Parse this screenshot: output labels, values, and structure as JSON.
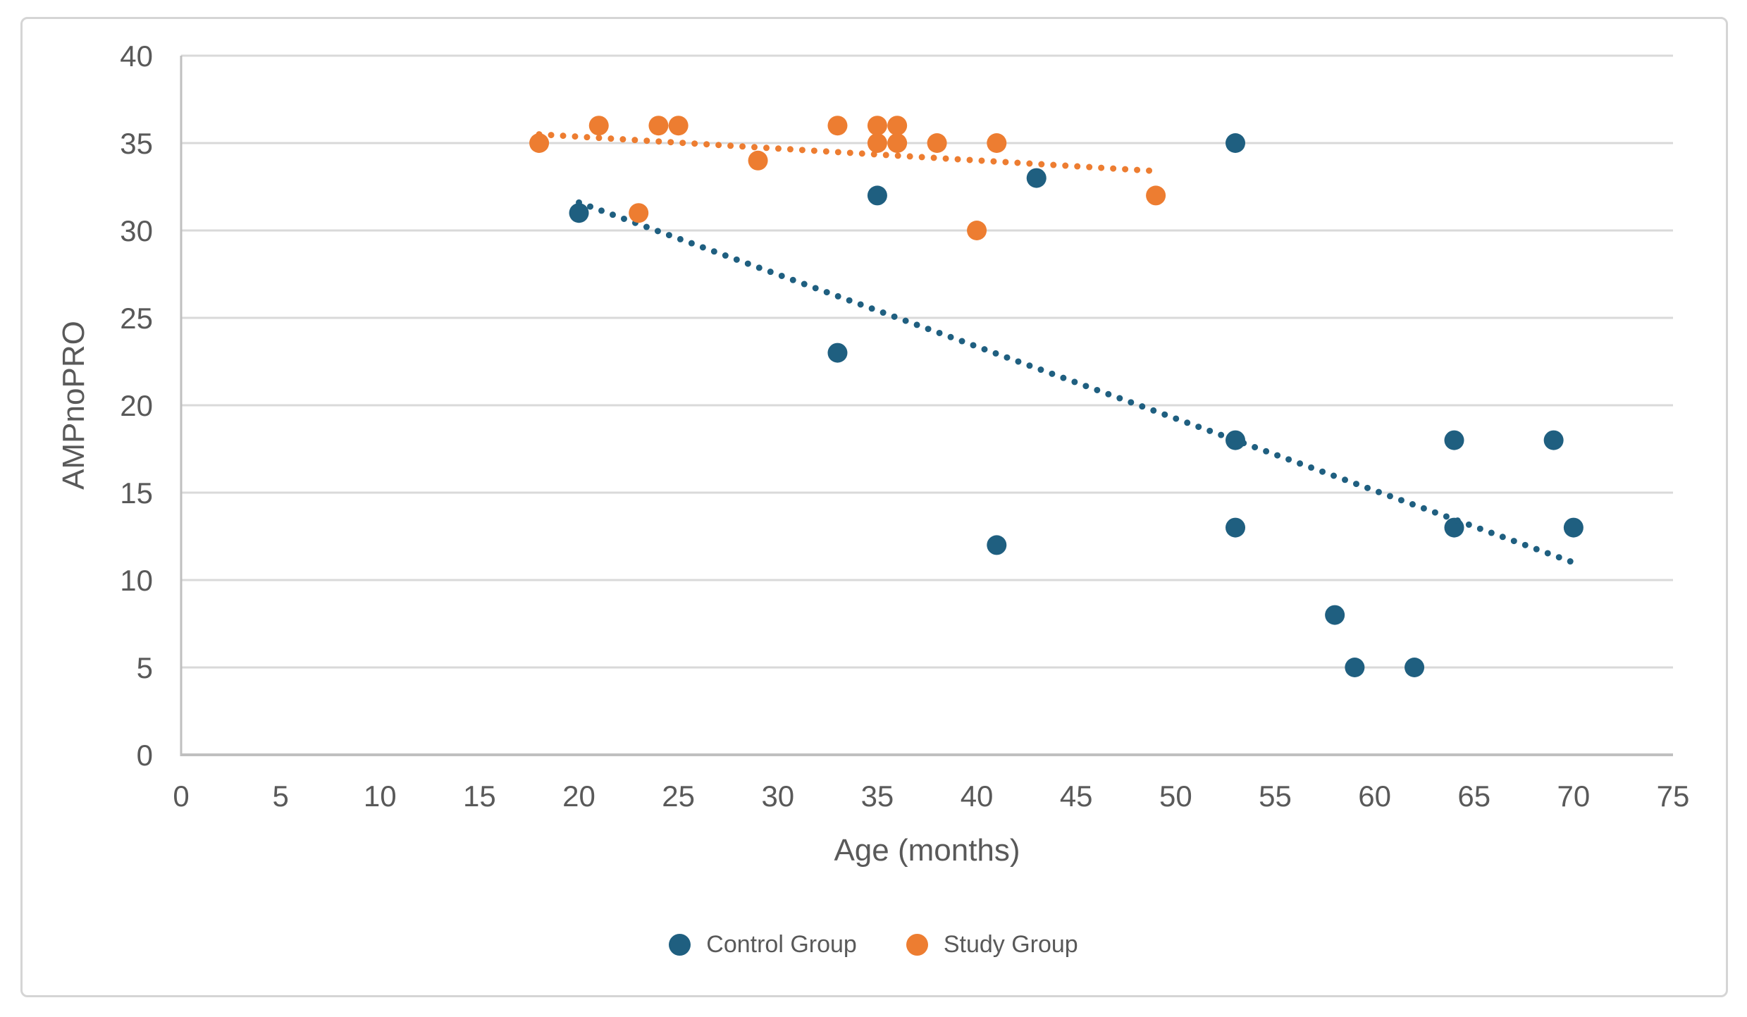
{
  "chart_data": {
    "type": "scatter",
    "title": "",
    "xlabel": "Age (months)",
    "ylabel": "AMPnoPRO",
    "xlim": [
      0,
      75
    ],
    "ylim": [
      0,
      40
    ],
    "x_ticks": [
      0,
      5,
      10,
      15,
      20,
      25,
      30,
      35,
      40,
      45,
      50,
      55,
      60,
      65,
      70,
      75
    ],
    "y_ticks": [
      0,
      5,
      10,
      15,
      20,
      25,
      30,
      35,
      40
    ],
    "grid": "horizontal-gridlines-only",
    "legend_position": "bottom-center",
    "axis_text_color": "#595959",
    "gridline_color": "#D9D9D9",
    "axis_line_color": "#BFBFBF",
    "series": [
      {
        "name": "Control Group",
        "color": "#1F5F80",
        "marker": "circle",
        "points": [
          [
            20,
            31
          ],
          [
            33,
            23
          ],
          [
            35,
            32
          ],
          [
            41,
            12
          ],
          [
            43,
            33
          ],
          [
            53,
            13
          ],
          [
            53,
            18
          ],
          [
            53,
            35
          ],
          [
            58,
            8
          ],
          [
            59,
            5
          ],
          [
            62,
            5
          ],
          [
            64,
            13
          ],
          [
            64,
            18
          ],
          [
            69,
            18
          ],
          [
            70,
            13
          ]
        ],
        "trendline": {
          "style": "dotted",
          "from": [
            20,
            31.6
          ],
          "to": [
            70,
            11
          ]
        }
      },
      {
        "name": "Study Group",
        "color": "#ED7D31",
        "marker": "circle",
        "points": [
          [
            18,
            35
          ],
          [
            21,
            36
          ],
          [
            23,
            31
          ],
          [
            24,
            36
          ],
          [
            25,
            36
          ],
          [
            29,
            34
          ],
          [
            33,
            36
          ],
          [
            35,
            35
          ],
          [
            35,
            36
          ],
          [
            36,
            35
          ],
          [
            36,
            36
          ],
          [
            38,
            35
          ],
          [
            40,
            30
          ],
          [
            41,
            35
          ],
          [
            49,
            32
          ]
        ],
        "trendline": {
          "style": "dotted",
          "from": [
            18,
            35.5
          ],
          "to": [
            49,
            33.4
          ]
        }
      }
    ]
  }
}
